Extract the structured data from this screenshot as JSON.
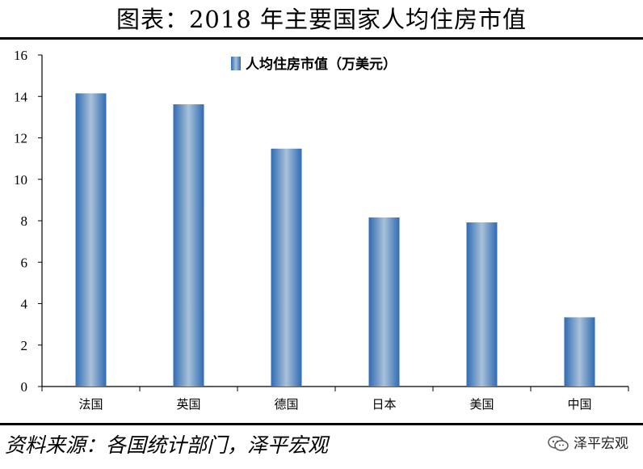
{
  "title": "图表：2018 年主要国家人均住房市值",
  "source": "资料来源：各国统计部门，泽平宏观",
  "brand": {
    "label": "泽平宏观",
    "icon": "wechat-icon"
  },
  "colors": {
    "bar_edge": "#2f6bb3",
    "bar_center": "#a9c1d9",
    "axis": "#000000"
  },
  "chart_data": {
    "type": "bar",
    "categories": [
      "法国",
      "英国",
      "德国",
      "日本",
      "美国",
      "中国"
    ],
    "series": [
      {
        "name": "人均住房市值（万美元）",
        "values": [
          14.15,
          13.62,
          11.48,
          8.16,
          7.92,
          3.34
        ]
      }
    ],
    "ylim": [
      0,
      16
    ],
    "yticks": [
      0,
      2,
      4,
      6,
      8,
      10,
      12,
      14,
      16
    ],
    "xlabel": "",
    "ylabel": "",
    "grid": false,
    "legend_position": "top-center"
  }
}
